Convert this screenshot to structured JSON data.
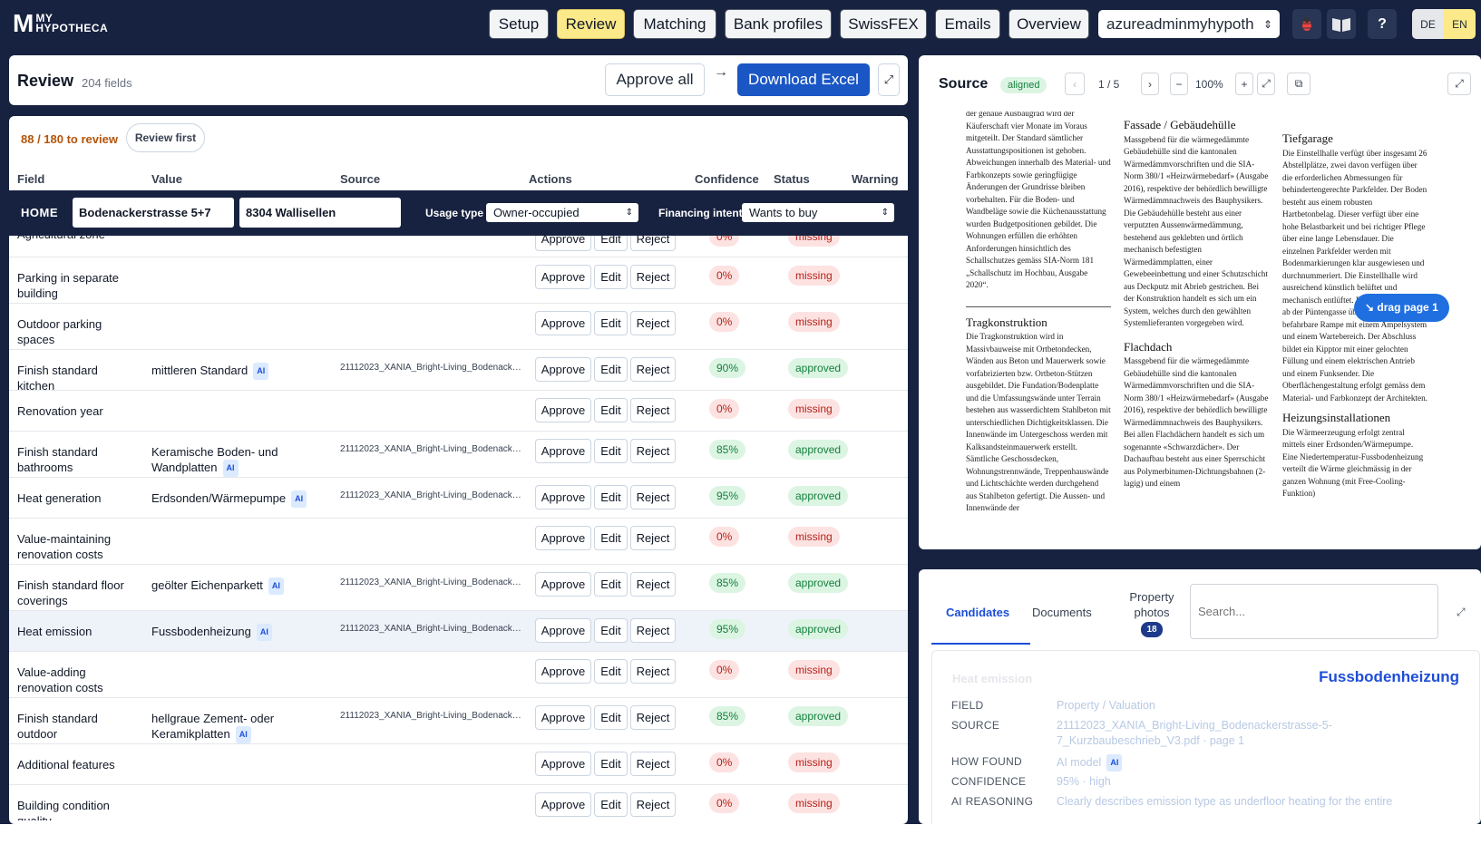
{
  "brand": {
    "mark": "M",
    "line1": "MY",
    "line2": "HYPOTHECA"
  },
  "nav": [
    "Setup",
    "Review",
    "Matching",
    "Bank profiles",
    "SwissFEX",
    "Emails",
    "Overview"
  ],
  "user_select": "azureadminmyhypoth",
  "icons": {
    "bug": "bug-icon",
    "book": "book-icon",
    "help": "?"
  },
  "languages": [
    "DE",
    "EN"
  ],
  "review": {
    "title": "Review",
    "count": "204 fields",
    "approve_all": "Approve all",
    "arrow": "→",
    "download": "Download Excel",
    "expand": "⤢"
  },
  "toolbar": {
    "progress": "88 / 180 to review",
    "review_first": "Review first"
  },
  "columns": [
    "Field",
    "Value",
    "Source",
    "Actions",
    "Confidence",
    "Status",
    "Warning"
  ],
  "home": {
    "label": "HOME",
    "street": "Bodenackerstrasse 5+7",
    "city": "8304 Wallisellen",
    "usage_label": "Usage type",
    "usage_value": "Owner-occupied",
    "intent_label": "Financing intent",
    "intent_value": "Wants to buy"
  },
  "actions": {
    "approve": "Approve",
    "edit": "Edit",
    "reject": "Reject"
  },
  "rows": [
    {
      "field": "Agricultural zone",
      "value": "",
      "ai": false,
      "source": "",
      "conf": "0%",
      "status": "missing"
    },
    {
      "field": "Parking in separate building",
      "value": "",
      "ai": false,
      "source": "",
      "conf": "0%",
      "status": "missing"
    },
    {
      "field": "Outdoor parking spaces",
      "value": "",
      "ai": false,
      "source": "",
      "conf": "0%",
      "status": "missing"
    },
    {
      "field": "Finish standard kitchen",
      "value": "mittleren Standard",
      "ai": true,
      "source": "21112023_XANIA_Bright-Living_Bodenackerstrasse-5-7_Kurzbaubeschrieb_V3.pdf",
      "conf": "90%",
      "status": "approved"
    },
    {
      "field": "Renovation year",
      "value": "",
      "ai": false,
      "source": "",
      "conf": "0%",
      "status": "missing"
    },
    {
      "field": "Finish standard bathrooms",
      "value": "Keramische Boden- und Wandplatten",
      "ai": true,
      "source": "21112023_XANIA_Bright-Living_Bodenackerstrasse-5-7_Kurzbaubeschrieb_V3.pdf",
      "conf": "85%",
      "status": "approved"
    },
    {
      "field": "Heat generation",
      "value": "Erdsonden/Wärmepumpe",
      "ai": true,
      "source": "21112023_XANIA_Bright-Living_Bodenackerstrasse-5-7_Kurzbaubeschrieb_V3.pdf",
      "conf": "95%",
      "status": "approved"
    },
    {
      "field": "Value-maintaining renovation costs",
      "value": "",
      "ai": false,
      "source": "",
      "conf": "0%",
      "status": "missing"
    },
    {
      "field": "Finish standard floor coverings",
      "value": "geölter Eichenparkett",
      "ai": true,
      "source": "21112023_XANIA_Bright-Living_Bodenackerstrasse-5-7_Kurzbaubeschrieb_V3.pdf",
      "conf": "85%",
      "status": "approved"
    },
    {
      "field": "Heat emission",
      "value": "Fussbodenheizung",
      "ai": true,
      "source": "21112023_XANIA_Bright-Living_Bodenackerstrasse-5-7_Kurzbaubeschrieb_V3.pdf",
      "conf": "95%",
      "status": "approved"
    },
    {
      "field": "Value-adding renovation costs",
      "value": "",
      "ai": false,
      "source": "",
      "conf": "0%",
      "status": "missing"
    },
    {
      "field": "Finish standard outdoor",
      "value": "hellgraue Zement- oder Keramikplatten",
      "ai": true,
      "source": "21112023_XANIA_Bright-Living_Bodenackerstrasse-5-7_Kurzbaubeschrieb_V3.pdf",
      "conf": "85%",
      "status": "approved"
    },
    {
      "field": "Additional features",
      "value": "",
      "ai": false,
      "source": "",
      "conf": "0%",
      "status": "missing"
    },
    {
      "field": "Building condition quality",
      "value": "",
      "ai": false,
      "source": "",
      "conf": "0%",
      "status": "missing"
    }
  ],
  "source": {
    "title": "Source",
    "aligned": "aligned",
    "prev": "‹",
    "page": "1 / 5",
    "next": "›",
    "zoom_out": "−",
    "zoom": "100%",
    "zoom_in": "+",
    "fit": "⤢",
    "copy": "⧉",
    "expand": "⤢",
    "drag": "↘ drag page 1"
  },
  "doc": {
    "col1_intro": "der genaue Ausbaugrad wird der Käuferschaft vier Monate im Voraus mitgeteilt. Der Standard sämtlicher Ausstattungspositionen ist gehoben. Abweichungen innerhalb des Material- und Farbkonzepts sowie geringfügige Änderungen der Grundrisse bleiben vorbehalten. Für die Boden- und Wandbeläge sowie die Küchenausstattung wurden Budgetpositionen gebildet. Die Wohnungen erfüllen die erhöhten Anforderungen hinsichtlich des Schallschutzes gemäss SIA-Norm 181 „Schallschutz im Hochbau, Ausgabe 2020“.",
    "col1_h": "Tragkonstruktion",
    "col1_body": "Die Tragkonstruktion wird in Massivbauweise mit Ortbetondecken, Wänden aus Beton und Mauerwerk sowie vorfabrizierten bzw. Ortbeton-Stützen ausgebildet. Die Fundation/Bodenplatte und die Umfassungswände unter Terrain bestehen aus wasserdichtem Stahlbeton mit unterschiedlichen Dichtigkeitsklassen. Die Innenwände im Untergeschoss werden mit Kalksandsteinmauerwerk erstellt. Sämtliche Geschossdecken, Wohnungstrennwände, Treppenhauswände und Lichtschächte werden durchgehend aus Stahlbeton gefertigt. Die Aussen- und Innenwände der",
    "col2_h1": "Fassade / Gebäudehülle",
    "col2_b1": "Massgebend für die wärmegedämmte Gebäudehülle sind die kantonalen Wärmedämmvorschriften und die SIA-Norm 380/1 «Heizwärmebedarf» (Ausgabe 2016), respektive der behördlich bewilligte Wärmedämmnachweis des Bauphysikers. Die Gebäudehülle besteht aus einer verputzten Aussenwärmedämmung, bestehend aus geklebten und örtlich mechanisch befestigten Wärmedämmplatten, einer Gewebeeinbettung und einer Schutzschicht aus Deckputz mit Abrieb gestrichen. Bei der Konstruktion handelt es sich um ein System, welches durch den gewählten Systemlieferanten vorgegeben wird.",
    "col2_h2": "Flachdach",
    "col2_b2": "Massgebend für die wärmegedämmte Gebäudehülle sind die kantonalen Wärmedämmvorschriften und die SIA-Norm 380/1 «Heizwärmebedarf» (Ausgabe 2016), respektive der behördlich bewilligte Wärmedämmnachweis des Bauphysikers. Bei allen Flachdächern handelt es sich um sogenannte «Schwarzdächer». Der Dachaufbau besteht aus einer Sperrschicht aus Polymerbitumen-Dichtungsbahnen (2-lagig) und einem",
    "col3_h1": "Tiefgarage",
    "col3_b1": "Die Einstellhalle verfügt über insgesamt 26 Abstellplätze, zwei davon verfügen über die erforderlichen Abmessungen für behindertengerechte Parkfelder. Der Boden besteht aus einem robusten Hartbetonbelag. Dieser verfügt über eine hohe Belastbarkeit und bei richtiger Pflege über eine lange Lebensdauer. Die einzelnen Parkfelder werden mit Bodenmarkierungen klar ausgewiesen und durchnummeriert. Die Einstellhalle wird ausreichend künstlich belüftet und mechanisch entlüftet. Die Zufahrt erfolgt ab der Püntengasse über eine einspurig befahrbare Rampe mit einem Ampelsystem und einem Wartebereich. Der Abschluss bildet ein Kipptor mit einer gelochten Füllung und einem elektrischen Antrieb und einem Funksender. Die Oberflächengestaltung erfolgt gemäss dem Material- und Farbkonzept der Architekten.",
    "col3_h2": "Heizungsinstallationen",
    "col3_b2": "Die Wärmeerzeugung erfolgt zentral mittels einer Erdsonden/Wärmepumpe. Eine Niedertemperatur-Fussbodenheizung verteilt die Wärme gleichmässig in der ganzen Wohnung (mit Free-Cooling-Funktion)"
  },
  "tabs": {
    "candidates": "Candidates",
    "documents": "Documents",
    "photos_line1": "Property",
    "photos_line2": "photos",
    "photos_count": "18",
    "search_placeholder": "Search...",
    "expand": "⤢"
  },
  "detail": {
    "field_name": "Heat emission",
    "value": "Fussbodenheizung",
    "k_field": "FIELD",
    "v_field": "Property / Valuation",
    "k_source": "SOURCE",
    "v_source1": "21112023_XANIA_Bright-Living_Bodenackerstrasse-5-",
    "v_source2": "7_Kurzbaubeschrieb_V3.pdf · page 1",
    "k_how": "HOW FOUND",
    "v_how": "AI model",
    "k_conf": "CONFIDENCE",
    "v_conf": "95% · high",
    "k_reason": "AI REASONING",
    "v_reason": "Clearly describes emission type as underfloor heating for the entire"
  }
}
